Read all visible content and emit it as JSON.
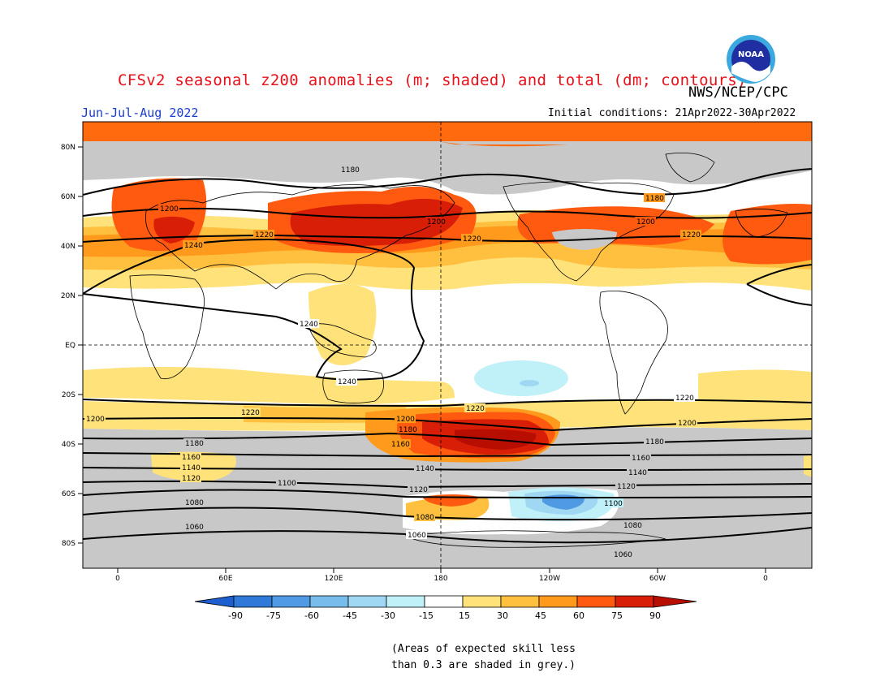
{
  "header": {
    "title": "CFSv2 seasonal z200 anomalies (m; shaded) and total (dm; contours)",
    "agency": "NWS/NCEP/CPC",
    "season": "Jun-Jul-Aug 2022",
    "initial_conditions": "Initial conditions: 21Apr2022-30Apr2022",
    "logo_text": "NOAA"
  },
  "map": {
    "lat_labels": [
      "80N",
      "60N",
      "40N",
      "20N",
      "EQ",
      "20S",
      "40S",
      "60S",
      "80S"
    ],
    "lon_labels": [
      "0",
      "60E",
      "120E",
      "180",
      "120W",
      "60W",
      "0"
    ],
    "contour_labels": {
      "c1180_n": "1180",
      "c1200_n": "1200",
      "c1220_n": "1220",
      "c1240_n": "1240",
      "c1240_s": "1240",
      "c1220_s": "1220",
      "c1200_s": "1200",
      "c1180_s": "1180",
      "c1160": "1160",
      "c1140": "1140",
      "c1120": "1120",
      "c1100": "1100",
      "c1080": "1080",
      "c1060": "1060"
    },
    "colors": {
      "grey_mask": "#c8c8c8",
      "p15": "#ffffff",
      "p30": "#ffe27a",
      "p45": "#ffc040",
      "p60": "#ff9a1c",
      "p75": "#ff5a10",
      "p90": "#d81e06",
      "p90plus": "#b80e02",
      "n15": "#c0f0f8",
      "n30": "#a0d8f4",
      "n45": "#78bcec",
      "n60": "#4f9ae2",
      "n75": "#2f7ad8"
    }
  },
  "colorbar": {
    "tick_labels": [
      "-90",
      "-75",
      "-60",
      "-45",
      "-30",
      "-15",
      "15",
      "30",
      "45",
      "60",
      "75",
      "90"
    ],
    "colors": [
      "#1e5fd0",
      "#2f7ad8",
      "#4f9ae2",
      "#78bcec",
      "#a0d8f4",
      "#c0f0f8",
      "#ffffff",
      "#ffe27a",
      "#ffc040",
      "#ff9a1c",
      "#ff5a10",
      "#d81e06",
      "#b80e02"
    ]
  },
  "footnote": {
    "line1": "(Areas of expected skill less",
    "line2": "than 0.3 are shaded in grey.)"
  }
}
